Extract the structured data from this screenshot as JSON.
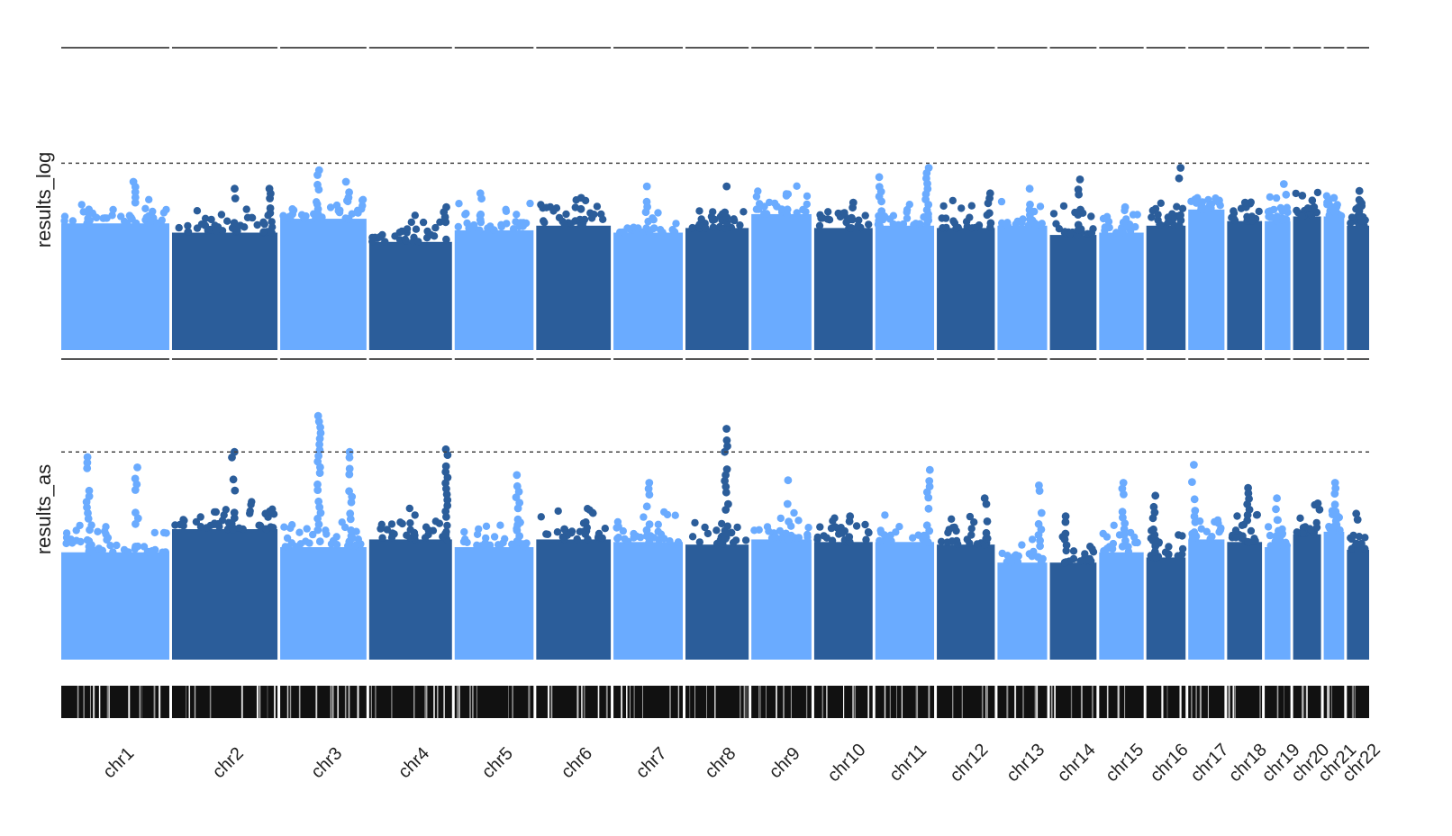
{
  "chart_data": {
    "type": "scatter",
    "subtype": "manhattan",
    "title": "",
    "xlabel": "",
    "colors": {
      "light": "#6aabff",
      "dark": "#2b5d9a",
      "threshold": "#444444",
      "rule": "#555555"
    },
    "chromosomes": [
      {
        "name": "chr1",
        "size": 248
      },
      {
        "name": "chr2",
        "size": 242
      },
      {
        "name": "chr3",
        "size": 198
      },
      {
        "name": "chr4",
        "size": 190
      },
      {
        "name": "chr5",
        "size": 181
      },
      {
        "name": "chr6",
        "size": 171
      },
      {
        "name": "chr7",
        "size": 159
      },
      {
        "name": "chr8",
        "size": 145
      },
      {
        "name": "chr9",
        "size": 138
      },
      {
        "name": "chr10",
        "size": 134
      },
      {
        "name": "chr11",
        "size": 135
      },
      {
        "name": "chr12",
        "size": 133
      },
      {
        "name": "chr13",
        "size": 114
      },
      {
        "name": "chr14",
        "size": 107
      },
      {
        "name": "chr15",
        "size": 102
      },
      {
        "name": "chr16",
        "size": 90
      },
      {
        "name": "chr17",
        "size": 83
      },
      {
        "name": "chr18",
        "size": 80
      },
      {
        "name": "chr19",
        "size": 59
      },
      {
        "name": "chr20",
        "size": 64
      },
      {
        "name": "chr21",
        "size": 47
      },
      {
        "name": "chr22",
        "size": 51
      }
    ],
    "panels": [
      {
        "ylabel": "results_log",
        "ylim": [
          0,
          10
        ],
        "threshold": 8,
        "series": [
          {
            "chr": "chr1",
            "bulk": 5.4,
            "peaks": [
              {
                "pos": 0.68,
                "y": 7.2
              },
              {
                "pos": 0.25,
                "y": 6.0
              }
            ]
          },
          {
            "chr": "chr2",
            "bulk": 5.0,
            "peaks": [
              {
                "pos": 0.6,
                "y": 6.9
              },
              {
                "pos": 0.93,
                "y": 6.9
              }
            ]
          },
          {
            "chr": "chr3",
            "bulk": 5.6,
            "peaks": [
              {
                "pos": 0.45,
                "y": 7.7
              },
              {
                "pos": 0.78,
                "y": 7.2
              }
            ]
          },
          {
            "chr": "chr4",
            "bulk": 4.6,
            "peaks": [
              {
                "pos": 0.92,
                "y": 6.1
              }
            ]
          },
          {
            "chr": "chr5",
            "bulk": 5.1,
            "peaks": [
              {
                "pos": 0.32,
                "y": 6.7
              }
            ]
          },
          {
            "chr": "chr6",
            "bulk": 5.3,
            "peaks": [
              {
                "pos": 0.6,
                "y": 6.5
              }
            ]
          },
          {
            "chr": "chr7",
            "bulk": 5.0,
            "peaks": [
              {
                "pos": 0.47,
                "y": 7.0
              }
            ]
          },
          {
            "chr": "chr8",
            "bulk": 5.2,
            "peaks": [
              {
                "pos": 0.65,
                "y": 7.0
              }
            ]
          },
          {
            "chr": "chr9",
            "bulk": 5.8,
            "peaks": [
              {
                "pos": 0.6,
                "y": 6.6
              }
            ]
          },
          {
            "chr": "chr10",
            "bulk": 5.2,
            "peaks": [
              {
                "pos": 0.65,
                "y": 6.3
              }
            ]
          },
          {
            "chr": "chr11",
            "bulk": 5.3,
            "peaks": [
              {
                "pos": 0.88,
                "y": 7.8
              },
              {
                "pos": 0.08,
                "y": 7.4
              }
            ]
          },
          {
            "chr": "chr12",
            "bulk": 5.2,
            "peaks": [
              {
                "pos": 0.9,
                "y": 6.7
              }
            ]
          },
          {
            "chr": "chr13",
            "bulk": 5.3,
            "peaks": [
              {
                "pos": 0.65,
                "y": 6.9
              }
            ]
          },
          {
            "chr": "chr14",
            "bulk": 4.9,
            "peaks": [
              {
                "pos": 0.62,
                "y": 7.3
              }
            ]
          },
          {
            "chr": "chr15",
            "bulk": 5.0,
            "peaks": [
              {
                "pos": 0.55,
                "y": 6.1
              }
            ]
          },
          {
            "chr": "chr16",
            "bulk": 5.3,
            "peaks": [
              {
                "pos": 0.85,
                "y": 7.8
              }
            ]
          },
          {
            "chr": "chr17",
            "bulk": 6.0,
            "peaks": [
              {
                "pos": 0.4,
                "y": 6.3
              }
            ]
          },
          {
            "chr": "chr18",
            "bulk": 5.5,
            "peaks": [
              {
                "pos": 0.55,
                "y": 6.3
              }
            ]
          },
          {
            "chr": "chr19",
            "bulk": 5.5,
            "peaks": [
              {
                "pos": 0.8,
                "y": 7.1
              }
            ]
          },
          {
            "chr": "chr20",
            "bulk": 5.7,
            "peaks": [
              {
                "pos": 0.3,
                "y": 6.6
              }
            ]
          },
          {
            "chr": "chr21",
            "bulk": 5.7,
            "peaks": [
              {
                "pos": 0.5,
                "y": 6.5
              }
            ]
          },
          {
            "chr": "chr22",
            "bulk": 5.3,
            "peaks": [
              {
                "pos": 0.6,
                "y": 6.8
              }
            ]
          }
        ]
      },
      {
        "ylabel": "results_as",
        "ylim": [
          0,
          10
        ],
        "threshold": 8,
        "series": [
          {
            "chr": "chr1",
            "bulk": 4.1,
            "peaks": [
              {
                "pos": 0.25,
                "y": 7.8
              },
              {
                "pos": 0.7,
                "y": 7.4
              }
            ]
          },
          {
            "chr": "chr2",
            "bulk": 5.0,
            "peaks": [
              {
                "pos": 0.58,
                "y": 8.0
              },
              {
                "pos": 0.9,
                "y": 5.6
              }
            ]
          },
          {
            "chr": "chr3",
            "bulk": 4.3,
            "peaks": [
              {
                "pos": 0.45,
                "y": 9.4
              },
              {
                "pos": 0.82,
                "y": 8.0
              }
            ]
          },
          {
            "chr": "chr4",
            "bulk": 4.6,
            "peaks": [
              {
                "pos": 0.93,
                "y": 8.1
              }
            ]
          },
          {
            "chr": "chr5",
            "bulk": 4.3,
            "peaks": [
              {
                "pos": 0.8,
                "y": 7.1
              }
            ]
          },
          {
            "chr": "chr6",
            "bulk": 4.6,
            "peaks": [
              {
                "pos": 0.4,
                "y": 5.0
              }
            ]
          },
          {
            "chr": "chr7",
            "bulk": 4.5,
            "peaks": [
              {
                "pos": 0.5,
                "y": 6.8
              }
            ]
          },
          {
            "chr": "chr8",
            "bulk": 4.4,
            "peaks": [
              {
                "pos": 0.65,
                "y": 8.9
              }
            ]
          },
          {
            "chr": "chr9",
            "bulk": 4.6,
            "peaks": [
              {
                "pos": 0.6,
                "y": 6.9
              }
            ]
          },
          {
            "chr": "chr10",
            "bulk": 4.5,
            "peaks": [
              {
                "pos": 0.6,
                "y": 5.5
              }
            ]
          },
          {
            "chr": "chr11",
            "bulk": 4.5,
            "peaks": [
              {
                "pos": 0.9,
                "y": 7.3
              }
            ]
          },
          {
            "chr": "chr12",
            "bulk": 4.4,
            "peaks": [
              {
                "pos": 0.85,
                "y": 6.2
              }
            ]
          },
          {
            "chr": "chr13",
            "bulk": 3.7,
            "peaks": [
              {
                "pos": 0.85,
                "y": 6.7
              }
            ]
          },
          {
            "chr": "chr14",
            "bulk": 3.7,
            "peaks": [
              {
                "pos": 0.35,
                "y": 5.5
              }
            ]
          },
          {
            "chr": "chr15",
            "bulk": 4.1,
            "peaks": [
              {
                "pos": 0.55,
                "y": 6.8
              }
            ]
          },
          {
            "chr": "chr16",
            "bulk": 3.9,
            "peaks": [
              {
                "pos": 0.2,
                "y": 6.3
              }
            ]
          },
          {
            "chr": "chr17",
            "bulk": 4.6,
            "peaks": [
              {
                "pos": 0.15,
                "y": 7.5
              }
            ]
          },
          {
            "chr": "chr18",
            "bulk": 4.5,
            "peaks": [
              {
                "pos": 0.6,
                "y": 6.6
              }
            ]
          },
          {
            "chr": "chr19",
            "bulk": 4.3,
            "peaks": [
              {
                "pos": 0.5,
                "y": 6.2
              }
            ]
          },
          {
            "chr": "chr20",
            "bulk": 4.8,
            "peaks": [
              {
                "pos": 0.9,
                "y": 6.0
              }
            ]
          },
          {
            "chr": "chr21",
            "bulk": 4.9,
            "peaks": [
              {
                "pos": 0.6,
                "y": 6.8
              }
            ]
          },
          {
            "chr": "chr22",
            "bulk": 4.2,
            "peaks": [
              {
                "pos": 0.5,
                "y": 5.6
              }
            ]
          }
        ]
      }
    ]
  }
}
